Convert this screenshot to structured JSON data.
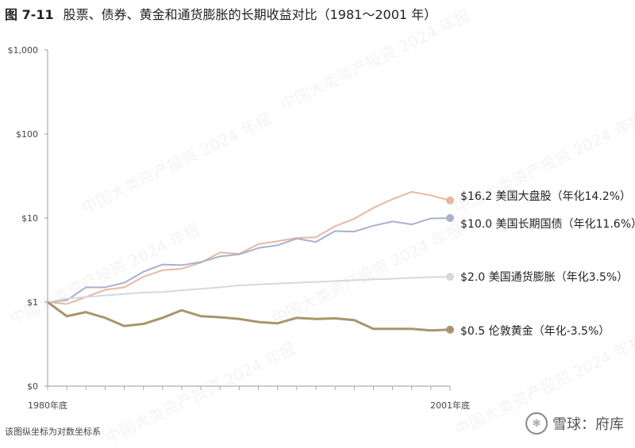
{
  "figure": {
    "number": "图 7-11",
    "title": "股票、债券、黄金和通货膨胀的长期收益对比（1981～2001 年）"
  },
  "footnote": "该图纵坐标为对数坐标系",
  "credit": {
    "logo_icon": "snowball-logo-icon",
    "text": "雪球：府库"
  },
  "watermark": "中国大类资产投资 2024 年报",
  "chart_data": {
    "type": "line",
    "y_scale": "log",
    "ylim": [
      0.1,
      1000
    ],
    "y_ticks": [
      {
        "value": 1000,
        "label": "$1,000"
      },
      {
        "value": 100,
        "label": "$100"
      },
      {
        "value": 10,
        "label": "$10"
      },
      {
        "value": 1,
        "label": "$1"
      },
      {
        "value": 0.1,
        "label": "$0"
      }
    ],
    "x": [
      1980,
      1981,
      1982,
      1983,
      1984,
      1985,
      1986,
      1987,
      1988,
      1989,
      1990,
      1991,
      1992,
      1993,
      1994,
      1995,
      1996,
      1997,
      1998,
      1999,
      2000,
      2001
    ],
    "x_tick_labels": [
      {
        "x": 1980,
        "label": "1980年底"
      },
      {
        "x": 2001,
        "label": "2001年底"
      }
    ],
    "grid": false,
    "series": [
      {
        "name": "$16.2 美国大盘股（年化14.2%）",
        "color": "#e8b8a0",
        "values": [
          1.0,
          0.95,
          1.15,
          1.4,
          1.5,
          2.0,
          2.4,
          2.5,
          2.95,
          3.9,
          3.75,
          4.9,
          5.3,
          5.8,
          5.9,
          8.0,
          9.8,
          13.2,
          16.8,
          20.5,
          18.6,
          16.2
        ]
      },
      {
        "name": "$10.0 美国长期国债（年化11.6%）",
        "color": "#a8b0cc",
        "values": [
          1.0,
          1.05,
          1.5,
          1.5,
          1.7,
          2.3,
          2.8,
          2.75,
          3.0,
          3.5,
          3.7,
          4.4,
          4.75,
          5.7,
          5.2,
          7.0,
          6.9,
          8.1,
          9.1,
          8.4,
          9.9,
          10.0
        ]
      },
      {
        "name": "$2.0 美国通货膨胀（年化3.5%）",
        "color": "#d4d8e2",
        "values": [
          1.0,
          1.1,
          1.15,
          1.2,
          1.25,
          1.3,
          1.32,
          1.38,
          1.44,
          1.5,
          1.58,
          1.62,
          1.66,
          1.7,
          1.74,
          1.78,
          1.82,
          1.86,
          1.9,
          1.94,
          1.98,
          2.0
        ]
      },
      {
        "name": "$0.5 伦敦黄金（年化-3.5%）",
        "color": "#a8966a",
        "values": [
          1.0,
          0.68,
          0.76,
          0.65,
          0.52,
          0.55,
          0.65,
          0.8,
          0.68,
          0.66,
          0.63,
          0.58,
          0.56,
          0.65,
          0.63,
          0.64,
          0.61,
          0.48,
          0.48,
          0.48,
          0.46,
          0.47
        ]
      }
    ]
  }
}
